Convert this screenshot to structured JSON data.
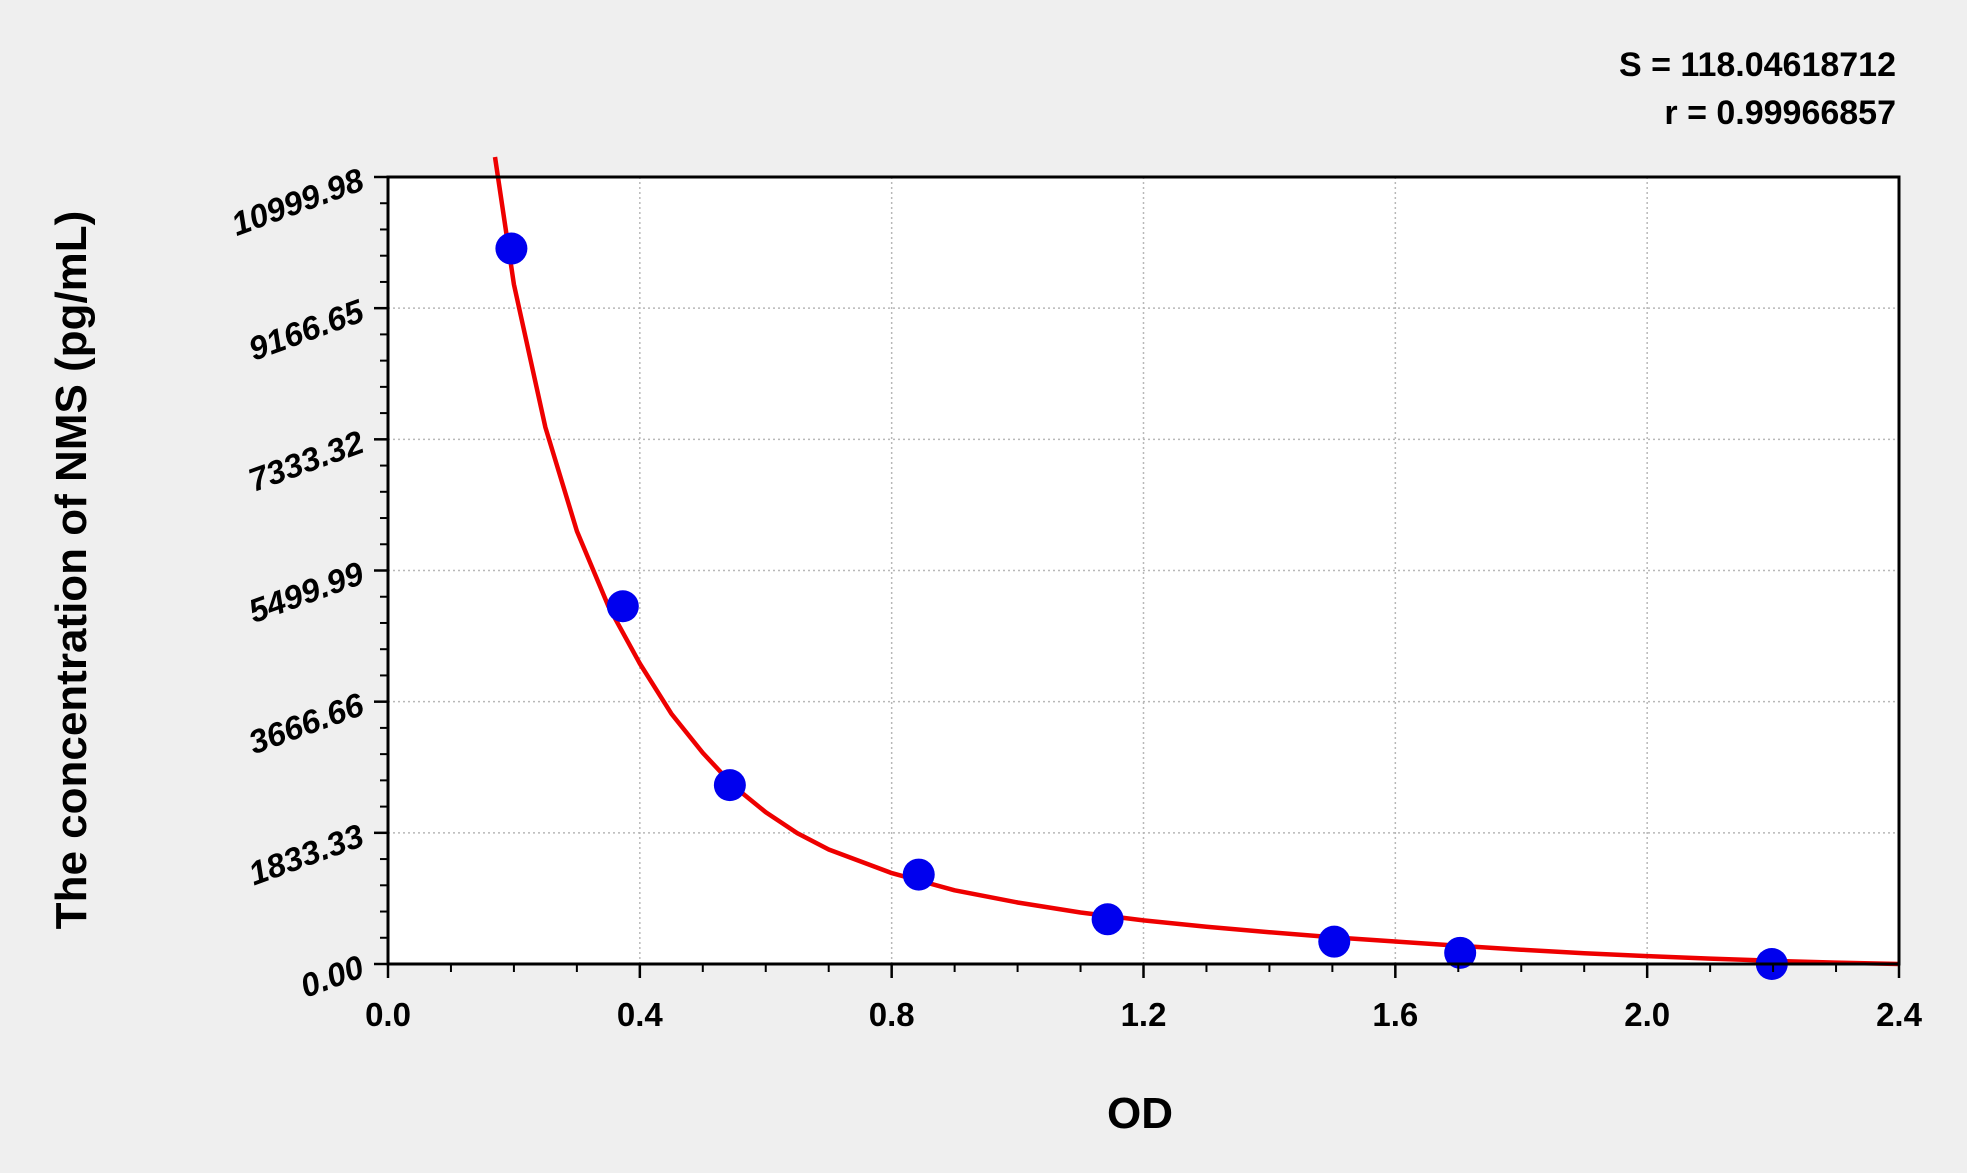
{
  "chart_data": {
    "type": "scatter",
    "title": "",
    "xlabel": "OD",
    "ylabel": "The concentration of NMS (pg/mL)",
    "xlim": [
      0.0,
      2.4
    ],
    "ylim": [
      0.0,
      10999.98
    ],
    "x_ticks": [
      0.0,
      0.4,
      0.8,
      1.2,
      1.6,
      2.0,
      2.4
    ],
    "x_tick_labels": [
      "0.0",
      "0.4",
      "0.8",
      "1.2",
      "1.6",
      "2.0",
      "2.4"
    ],
    "y_ticks": [
      0.0,
      1833.33,
      3666.66,
      5499.99,
      7333.32,
      9166.65,
      10999.98
    ],
    "y_tick_labels": [
      "0.00",
      "1833.33",
      "3666.66",
      "5499.99",
      "7333.32",
      "9166.65",
      "10999.98"
    ],
    "grid": true,
    "annotations": [
      "S = 118.04618712",
      "r = 0.99966857"
    ],
    "series": [
      {
        "type": "scatter",
        "color": "#0000ee",
        "x": [
          0.196,
          0.373,
          0.543,
          0.843,
          1.143,
          1.503,
          1.703,
          2.198
        ],
        "y": [
          10000,
          5000,
          2500,
          1250,
          625,
          312,
          156,
          0
        ]
      },
      {
        "type": "line",
        "color": "#ee0000",
        "x": [
          0.17,
          0.2,
          0.25,
          0.3,
          0.35,
          0.4,
          0.45,
          0.5,
          0.55,
          0.6,
          0.65,
          0.7,
          0.8,
          0.9,
          1.0,
          1.1,
          1.2,
          1.3,
          1.4,
          1.5,
          1.6,
          1.7,
          1.8,
          1.9,
          2.0,
          2.1,
          2.2,
          2.3,
          2.4
        ],
        "y": [
          11300,
          9500,
          7500,
          6050,
          5000,
          4200,
          3500,
          2950,
          2480,
          2120,
          1830,
          1600,
          1270,
          1030,
          860,
          720,
          610,
          520,
          445,
          375,
          315,
          255,
          200,
          150,
          110,
          75,
          45,
          20,
          0
        ]
      }
    ]
  }
}
